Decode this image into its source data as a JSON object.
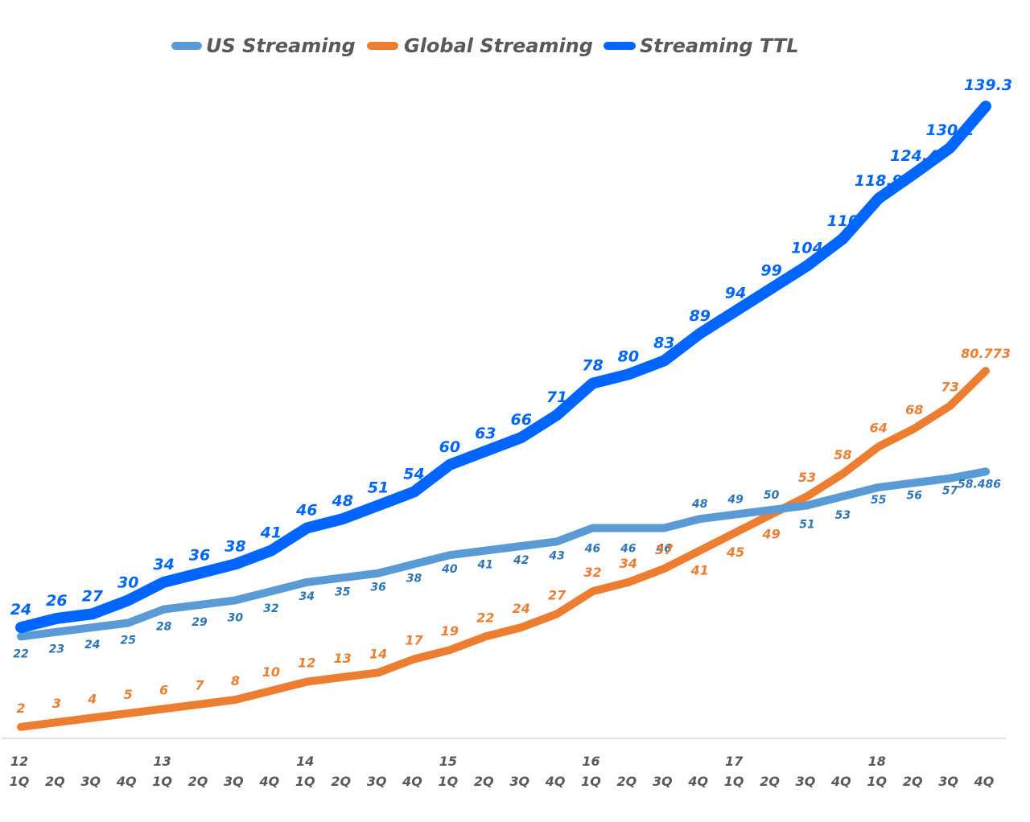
{
  "chart_data": {
    "type": "line",
    "title": "",
    "xlabel": "",
    "ylabel": "",
    "legend_position": "top-center",
    "grid": false,
    "ylim": [
      0,
      145
    ],
    "x_year_labels": [
      "12",
      "13",
      "14",
      "15",
      "16",
      "17",
      "18"
    ],
    "x_quarter_labels": [
      "1Q",
      "2Q",
      "3Q",
      "4Q"
    ],
    "categories": [
      "12 1Q",
      "12 2Q",
      "12 3Q",
      "12 4Q",
      "13 1Q",
      "13 2Q",
      "13 3Q",
      "13 4Q",
      "14 1Q",
      "14 2Q",
      "14 3Q",
      "14 4Q",
      "15 1Q",
      "15 2Q",
      "15 3Q",
      "15 4Q",
      "16 1Q",
      "16 2Q",
      "16 3Q",
      "16 4Q",
      "17 1Q",
      "17 2Q",
      "17 3Q",
      "17 4Q",
      "18 1Q",
      "18 2Q",
      "18 3Q",
      "18 4Q"
    ],
    "series": [
      {
        "name": "US Streaming",
        "color": "#5B9BD5",
        "label_color": "#2E75B6",
        "values": [
          22,
          23,
          24,
          25,
          28,
          29,
          30,
          32,
          34,
          35,
          36,
          38,
          40,
          41,
          42,
          43,
          46,
          46,
          46,
          48,
          49,
          50,
          51,
          53,
          55,
          56,
          57,
          58.486
        ],
        "labels": [
          "22",
          "23",
          "24",
          "25",
          "28",
          "29",
          "30",
          "32",
          "34",
          "35",
          "36",
          "38",
          "40",
          "41",
          "42",
          "43",
          "46",
          "46",
          "46",
          "48",
          "49",
          "50",
          "51",
          "53",
          "55",
          "56",
          "57",
          "58.486"
        ]
      },
      {
        "name": "Global Streaming",
        "color": "#ED7D31",
        "label_color": "#ED7D31",
        "values": [
          2,
          3,
          4,
          5,
          6,
          7,
          8,
          10,
          12,
          13,
          14,
          17,
          19,
          22,
          24,
          27,
          32,
          34,
          37,
          41,
          45,
          49,
          53,
          58,
          64,
          68,
          73,
          80.773
        ],
        "labels": [
          "2",
          "3",
          "4",
          "5",
          "6",
          "7",
          "8",
          "10",
          "12",
          "13",
          "14",
          "17",
          "19",
          "22",
          "24",
          "27",
          "32",
          "34",
          "37",
          "41",
          "45",
          "49",
          "53",
          "58",
          "64",
          "68",
          "73",
          "80.773"
        ]
      },
      {
        "name": "Streaming TTL",
        "color": "#0066FF",
        "label_color": "#0066FF",
        "values": [
          24,
          26,
          27,
          30,
          34,
          36,
          38,
          41,
          46,
          48,
          51,
          54,
          60,
          63,
          66,
          71,
          78,
          80,
          83,
          89,
          94,
          99,
          104,
          110,
          118.9,
          124.4,
          130.1,
          139.3
        ],
        "labels": [
          "24",
          "26",
          "27",
          "30",
          "34",
          "36",
          "38",
          "41",
          "46",
          "48",
          "51",
          "54",
          "60",
          "63",
          "66",
          "71",
          "78",
          "80",
          "83",
          "89",
          "94",
          "99",
          "104",
          "110",
          "118.9",
          "124.4",
          "130.1",
          "139.3"
        ]
      }
    ]
  }
}
